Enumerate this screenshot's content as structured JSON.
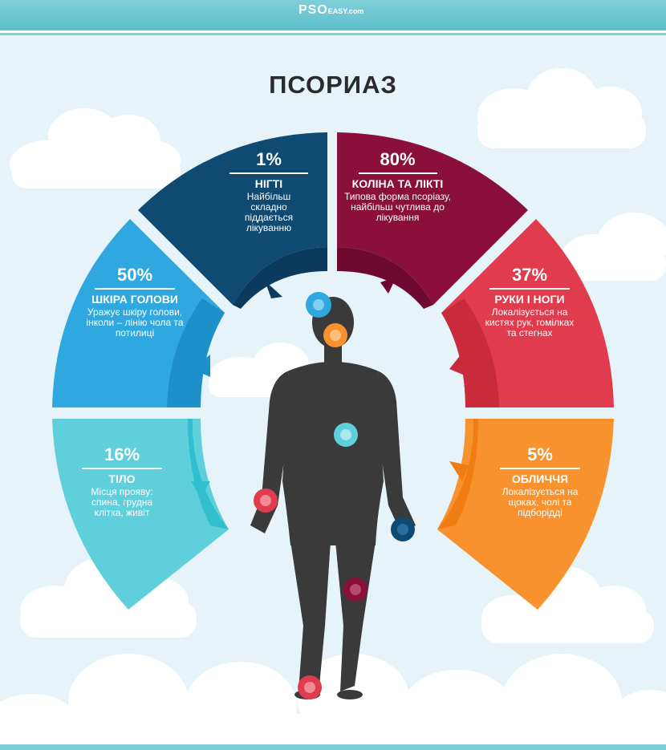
{
  "header": {
    "logo": "PSO",
    "logo_sub": "EASY.com"
  },
  "title": "ПСОРИАЗ",
  "segments": [
    {
      "percent": "1%",
      "name": "НІГТІ",
      "description": "Найбільш складно піддається лікуванню",
      "color": "#0f4a73",
      "inner_color": "#0b3a5c"
    },
    {
      "percent": "80%",
      "name": "КОЛІНА ТА ЛІКТІ",
      "description": "Типова форма псоріазу, найбільш чутлива до лікування",
      "color": "#8a0f3b",
      "inner_color": "#6e0a2f"
    },
    {
      "percent": "50%",
      "name": "ШКІРА ГОЛОВИ",
      "description": "Уражує шкіру голови, інколи – лінію чола та потилиці",
      "color": "#2ea8df",
      "inner_color": "#1d8fc9"
    },
    {
      "percent": "37%",
      "name": "РУКИ І НОГИ",
      "description": "Локалізується на кистях рук, гомілках та стегнах",
      "color": "#e03c4e",
      "inner_color": "#c92a3c"
    },
    {
      "percent": "16%",
      "name": "ТІЛО",
      "description": "Місця прояву: спина, грудна клітка, живіт",
      "color": "#5fcfdb",
      "inner_color": "#2fbfcf"
    },
    {
      "percent": "5%",
      "name": "ОБЛИЧЧЯ",
      "description": "Локалізується на щоках, чолі та підборідді",
      "color": "#f7922e",
      "inner_color": "#ef7d14"
    }
  ],
  "colors": {
    "background": "#e6f3f8",
    "figure": "#3a3a3a",
    "cloud": "#ffffff"
  }
}
